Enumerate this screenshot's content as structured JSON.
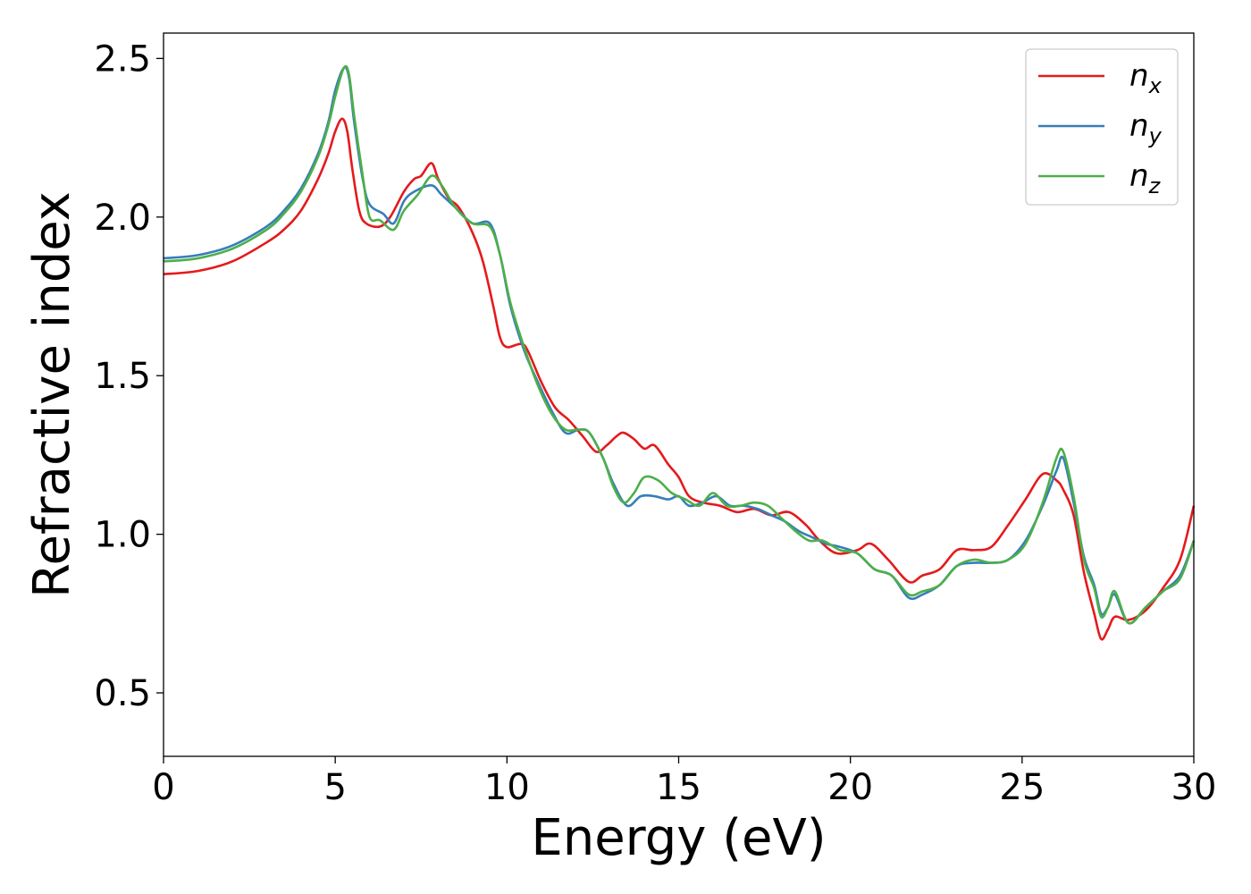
{
  "chart_data": {
    "type": "line",
    "title": "",
    "xlabel": "Energy (eV)",
    "ylabel": "Refractive index",
    "xlim": [
      0,
      30
    ],
    "ylim": [
      0.3,
      2.58
    ],
    "xticks": [
      0,
      5,
      10,
      15,
      20,
      25,
      30
    ],
    "xtick_labels": [
      "0",
      "5",
      "10",
      "15",
      "20",
      "25",
      "30"
    ],
    "yticks": [
      0.5,
      1.0,
      1.5,
      2.0,
      2.5
    ],
    "ytick_labels": [
      "0.5",
      "1.0",
      "1.5",
      "2.0",
      "2.5"
    ],
    "grid": false,
    "legend_position": "top-right",
    "series": [
      {
        "name": "n",
        "subscript": "x",
        "color": "#e41a1c",
        "x": [
          0,
          1,
          2,
          3,
          3.5,
          4,
          4.5,
          4.8,
          5.0,
          5.2,
          5.35,
          5.5,
          5.7,
          5.9,
          6.3,
          6.6,
          7.0,
          7.3,
          7.5,
          7.8,
          8.0,
          8.3,
          8.6,
          9.0,
          9.3,
          9.6,
          9.8,
          10.0,
          10.4,
          10.6,
          11.0,
          11.4,
          11.8,
          12.2,
          12.6,
          12.9,
          13.2,
          13.4,
          13.7,
          14.0,
          14.3,
          14.7,
          15.0,
          15.3,
          15.7,
          16.2,
          16.7,
          17.2,
          17.7,
          18.2,
          18.7,
          19.1,
          19.6,
          20.2,
          20.6,
          21.1,
          21.7,
          22.1,
          22.6,
          23.1,
          23.6,
          24.1,
          24.6,
          25.1,
          25.6,
          26.0,
          26.2,
          26.5,
          26.8,
          27.1,
          27.3,
          27.5,
          27.7,
          28.1,
          28.6,
          29.1,
          29.6,
          30.0
        ],
        "y": [
          1.82,
          1.83,
          1.86,
          1.92,
          1.96,
          2.02,
          2.12,
          2.2,
          2.27,
          2.31,
          2.27,
          2.15,
          2.02,
          1.98,
          1.97,
          2.0,
          2.08,
          2.12,
          2.13,
          2.17,
          2.12,
          2.06,
          2.03,
          1.95,
          1.86,
          1.72,
          1.62,
          1.59,
          1.6,
          1.58,
          1.48,
          1.4,
          1.36,
          1.31,
          1.26,
          1.28,
          1.31,
          1.32,
          1.3,
          1.27,
          1.28,
          1.22,
          1.18,
          1.12,
          1.1,
          1.09,
          1.07,
          1.08,
          1.06,
          1.07,
          1.03,
          0.98,
          0.94,
          0.95,
          0.97,
          0.92,
          0.85,
          0.87,
          0.89,
          0.95,
          0.95,
          0.96,
          1.03,
          1.11,
          1.19,
          1.17,
          1.14,
          1.06,
          0.88,
          0.75,
          0.67,
          0.7,
          0.74,
          0.73,
          0.76,
          0.83,
          0.92,
          1.09
        ]
      },
      {
        "name": "n",
        "subscript": "y",
        "color": "#377eb8",
        "x": [
          0,
          1,
          2,
          3,
          3.5,
          4,
          4.5,
          4.8,
          5.0,
          5.25,
          5.4,
          5.55,
          5.8,
          6.0,
          6.4,
          6.7,
          7.0,
          7.3,
          7.8,
          8.1,
          8.5,
          9.0,
          9.5,
          9.8,
          10.1,
          10.5,
          10.9,
          11.3,
          11.7,
          12.1,
          12.4,
          12.8,
          13.1,
          13.5,
          13.9,
          14.3,
          14.7,
          15.0,
          15.3,
          15.7,
          16.1,
          16.5,
          16.9,
          17.3,
          17.7,
          18.1,
          18.5,
          18.9,
          19.3,
          19.7,
          20.2,
          20.7,
          21.2,
          21.7,
          22.1,
          22.6,
          23.1,
          23.6,
          24.1,
          24.6,
          25.1,
          25.6,
          26.0,
          26.2,
          26.5,
          26.8,
          27.1,
          27.3,
          27.5,
          27.7,
          28.1,
          28.6,
          29.1,
          29.6,
          30.0
        ],
        "y": [
          1.87,
          1.88,
          1.91,
          1.97,
          2.02,
          2.09,
          2.2,
          2.3,
          2.4,
          2.47,
          2.44,
          2.3,
          2.12,
          2.04,
          2.01,
          1.98,
          2.05,
          2.08,
          2.1,
          2.07,
          2.03,
          1.98,
          1.98,
          1.88,
          1.72,
          1.58,
          1.48,
          1.39,
          1.32,
          1.33,
          1.32,
          1.24,
          1.16,
          1.09,
          1.12,
          1.12,
          1.11,
          1.12,
          1.09,
          1.1,
          1.12,
          1.09,
          1.09,
          1.08,
          1.06,
          1.04,
          1.01,
          0.99,
          0.97,
          0.96,
          0.94,
          0.89,
          0.87,
          0.8,
          0.81,
          0.84,
          0.9,
          0.91,
          0.91,
          0.92,
          0.98,
          1.09,
          1.2,
          1.24,
          1.1,
          0.93,
          0.84,
          0.75,
          0.77,
          0.81,
          0.72,
          0.77,
          0.82,
          0.87,
          0.98
        ]
      },
      {
        "name": "n",
        "subscript": "z",
        "color": "#4daf4a",
        "x": [
          0,
          1,
          2,
          3,
          3.5,
          4,
          4.5,
          4.8,
          5.0,
          5.25,
          5.4,
          5.55,
          5.8,
          6.0,
          6.3,
          6.7,
          7.0,
          7.4,
          7.8,
          8.1,
          8.5,
          9.0,
          9.5,
          9.8,
          10.1,
          10.5,
          10.9,
          11.3,
          11.7,
          12.1,
          12.4,
          12.8,
          13.1,
          13.4,
          13.7,
          14.0,
          14.4,
          14.8,
          15.2,
          15.6,
          16.0,
          16.4,
          16.8,
          17.2,
          17.6,
          18.0,
          18.4,
          18.8,
          19.2,
          19.7,
          20.2,
          20.7,
          21.2,
          21.7,
          22.1,
          22.6,
          23.1,
          23.6,
          24.1,
          24.6,
          25.1,
          25.6,
          26.0,
          26.2,
          26.5,
          26.8,
          27.1,
          27.3,
          27.5,
          27.7,
          28.1,
          28.6,
          29.1,
          29.6,
          30.0
        ],
        "y": [
          1.86,
          1.87,
          1.9,
          1.96,
          2.01,
          2.08,
          2.19,
          2.29,
          2.38,
          2.47,
          2.45,
          2.32,
          2.13,
          2.0,
          1.99,
          1.96,
          2.02,
          2.07,
          2.13,
          2.1,
          2.03,
          1.98,
          1.97,
          1.88,
          1.73,
          1.59,
          1.47,
          1.38,
          1.33,
          1.33,
          1.32,
          1.24,
          1.15,
          1.1,
          1.13,
          1.18,
          1.17,
          1.13,
          1.11,
          1.09,
          1.13,
          1.09,
          1.09,
          1.1,
          1.09,
          1.05,
          1.01,
          0.98,
          0.98,
          0.95,
          0.94,
          0.89,
          0.87,
          0.81,
          0.82,
          0.84,
          0.9,
          0.92,
          0.91,
          0.92,
          0.97,
          1.1,
          1.24,
          1.26,
          1.12,
          0.92,
          0.83,
          0.74,
          0.77,
          0.82,
          0.72,
          0.77,
          0.82,
          0.86,
          0.98
        ]
      }
    ]
  }
}
